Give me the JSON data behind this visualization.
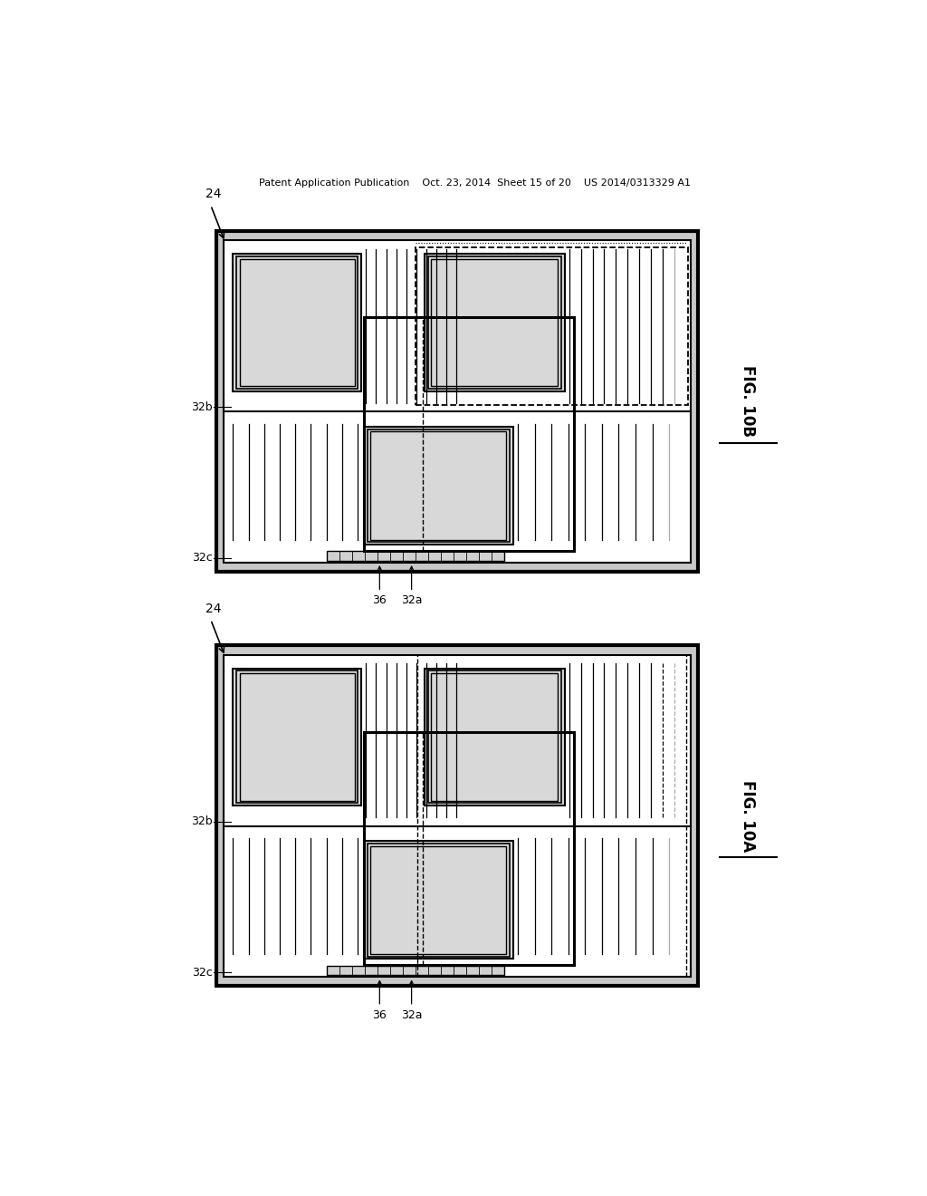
{
  "bg_color": "#ffffff",
  "lc": "#000000",
  "header": "Patent Application Publication    Oct. 23, 2014  Sheet 15 of 20    US 2014/0313329 A1",
  "diagram_top": {
    "fig_label": "FIG. 10B",
    "outer": [
      0.14,
      0.535,
      0.81,
      0.905
    ],
    "is_10B": true
  },
  "diagram_bot": {
    "fig_label": "FIG. 10A",
    "outer": [
      0.14,
      0.085,
      0.81,
      0.455
    ],
    "is_10B": false
  }
}
